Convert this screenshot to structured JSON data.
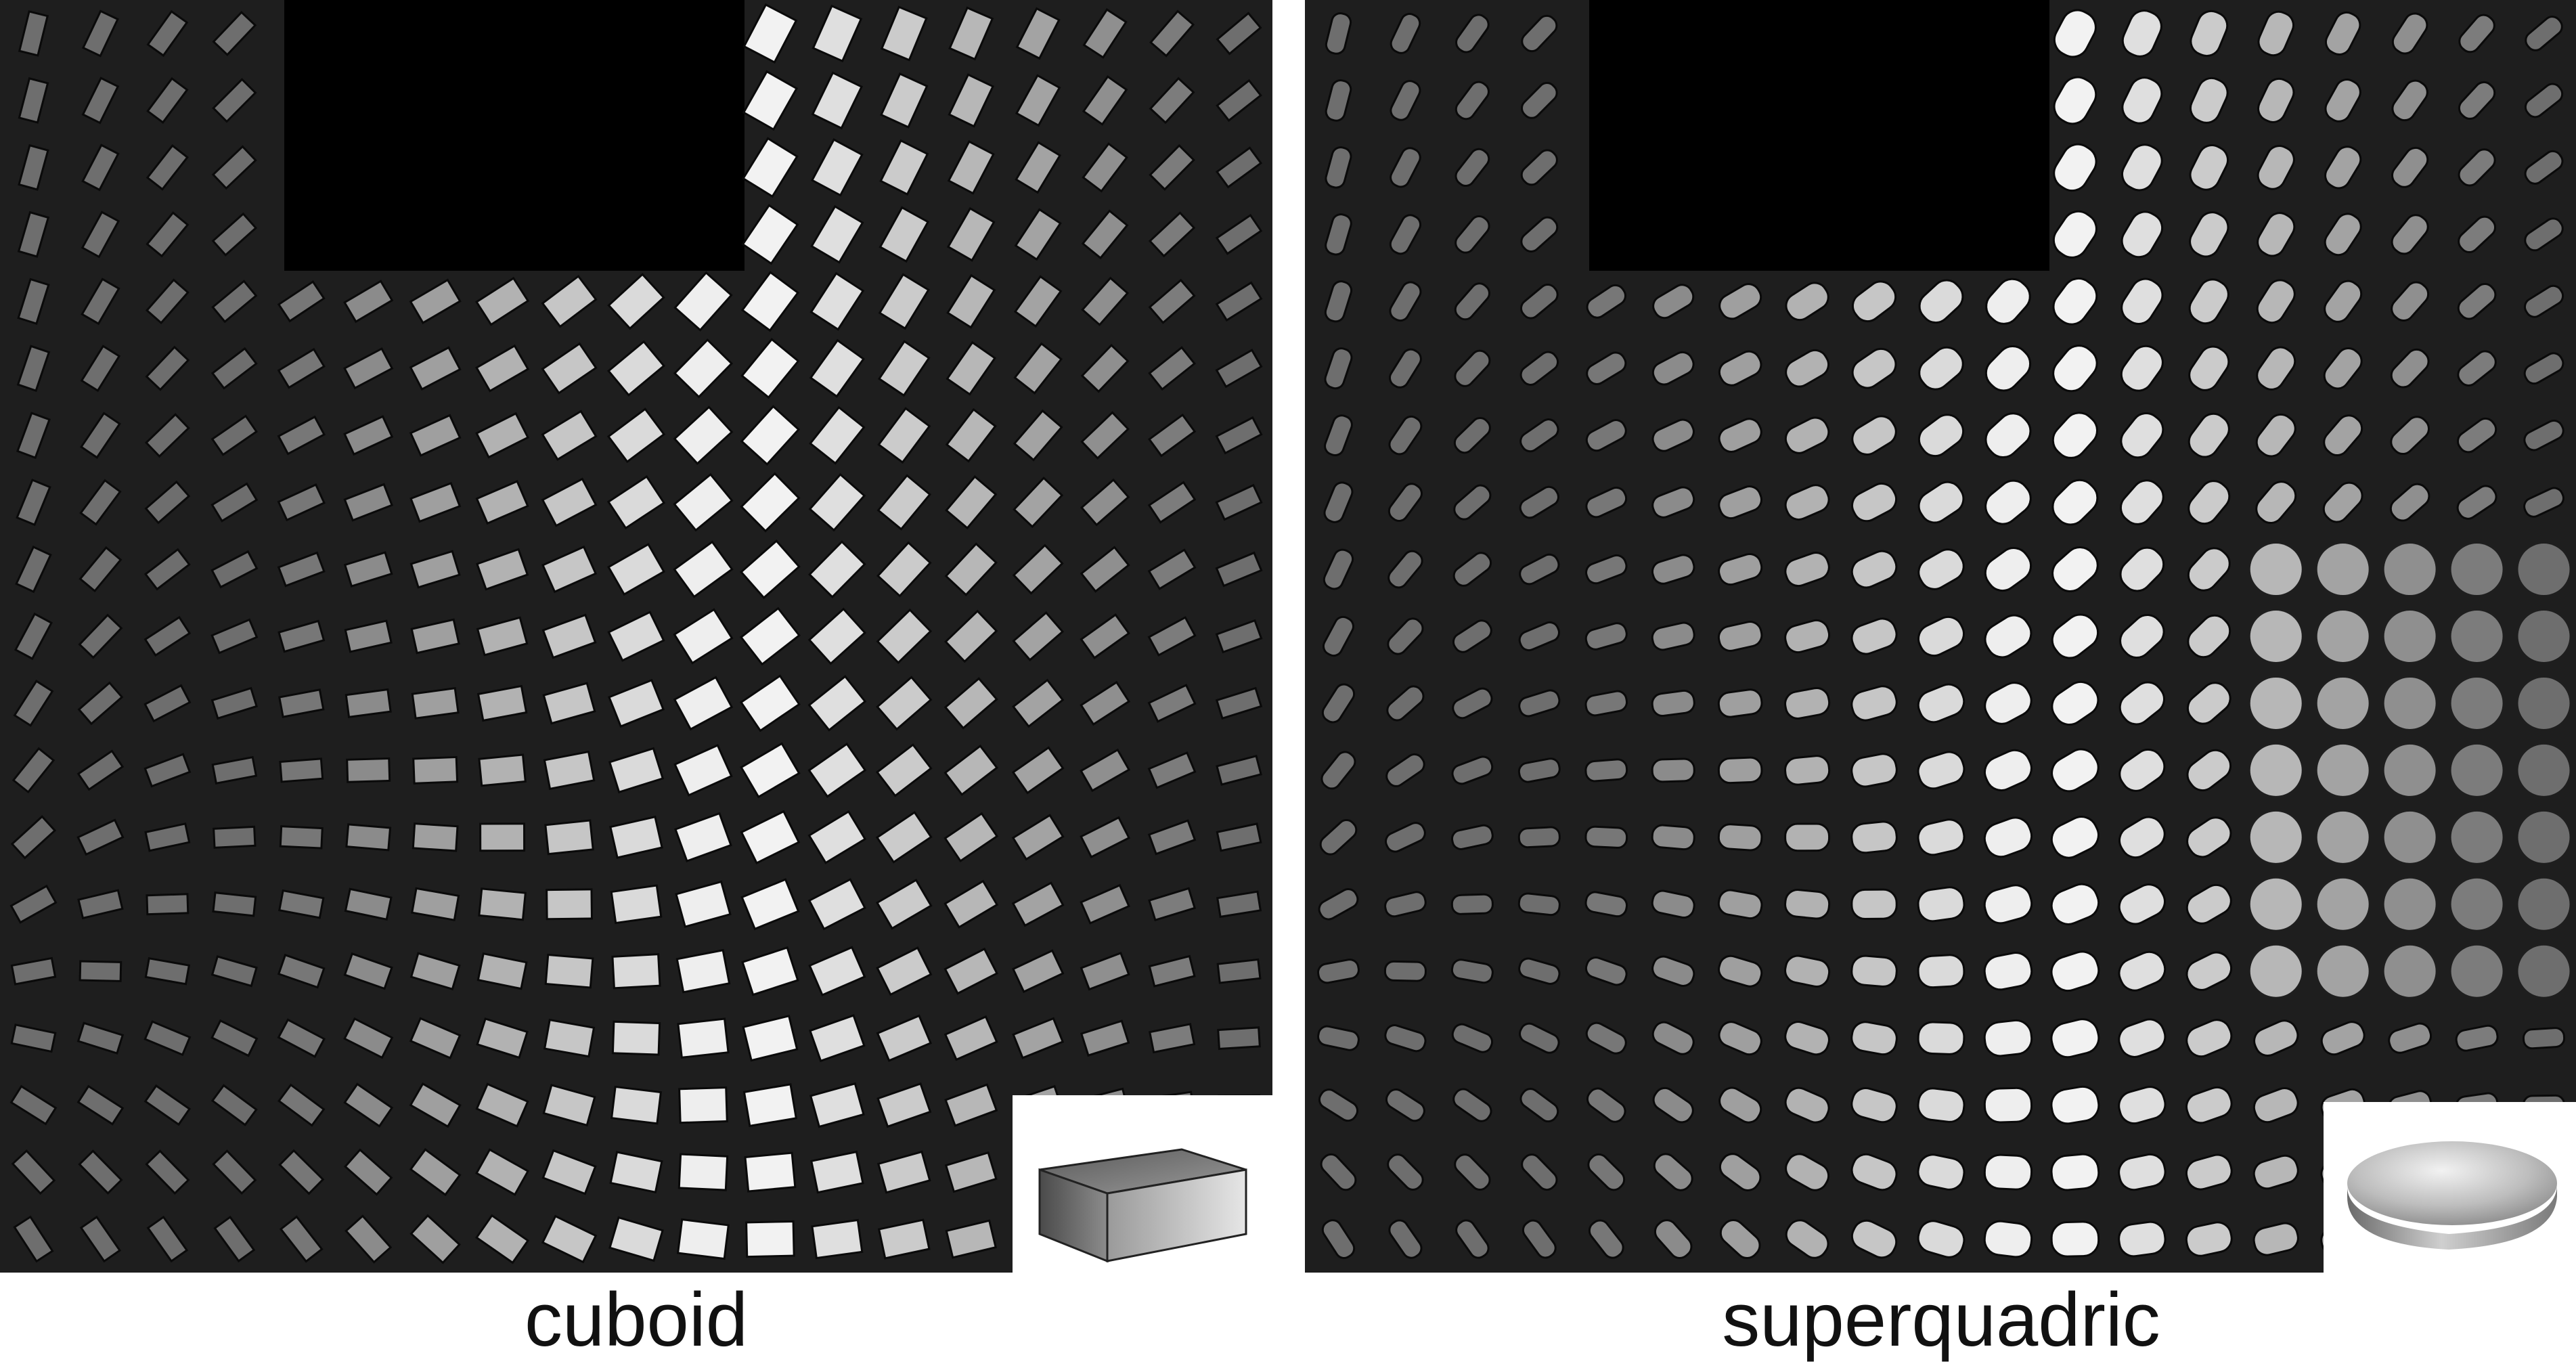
{
  "panels": [
    {
      "caption": "cuboid",
      "glyph": "cuboid"
    },
    {
      "caption": "superquadric",
      "glyph": "superquadric"
    }
  ],
  "colors": {
    "background": "#1e1e1e",
    "hole": "#000000",
    "page": "#ffffff"
  }
}
